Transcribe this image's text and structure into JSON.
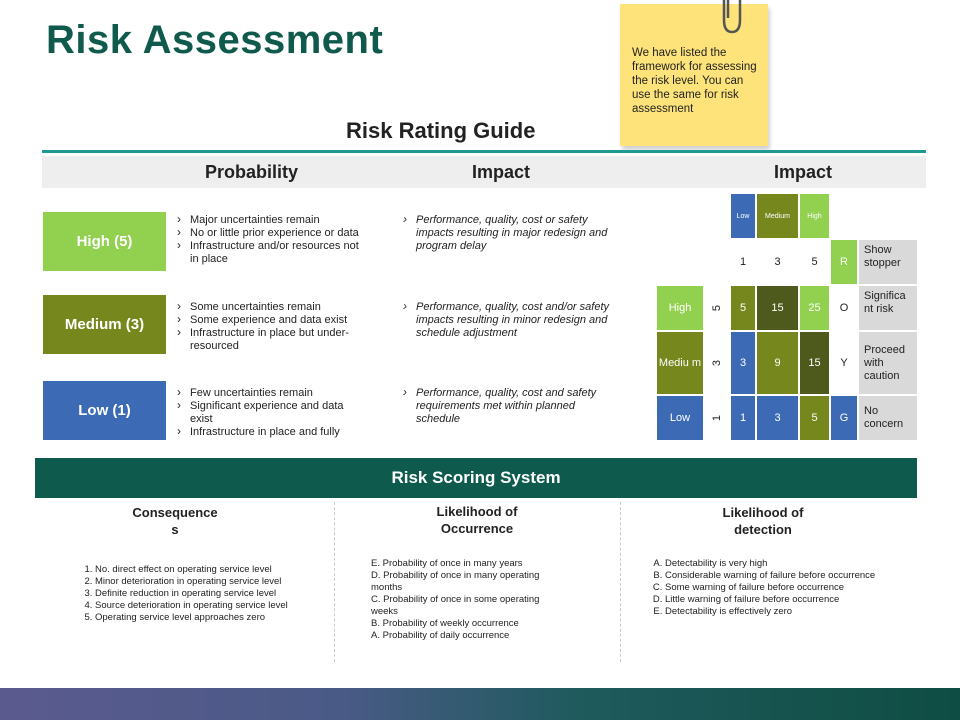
{
  "title": "Risk Assessment",
  "sticky_note": "We have listed the framework for assessing the risk level. You can use the same for risk assessment",
  "guide": {
    "title": "Risk Rating Guide",
    "headers": {
      "probability": "Probability",
      "impact": "Impact",
      "matrix": "Impact"
    },
    "levels": [
      {
        "label": "High (5)",
        "color": "#92d050",
        "probability": [
          "Major uncertainties remain",
          "No or little prior experience or data",
          "Infrastructure and/or resources not in place"
        ],
        "impact": "Performance, quality, cost or safety impacts resulting in major redesign and program delay"
      },
      {
        "label": "Medium (3)",
        "color": "#76881d",
        "probability": [
          "Some uncertainties remain",
          "Some experience and data exist",
          "Infrastructure in place but under-resourced"
        ],
        "impact": "Performance, quality, cost and/or safety impacts resulting in minor redesign and schedule adjustment"
      },
      {
        "label": "Low (1)",
        "color": "#3c6ab5",
        "probability": [
          "Few uncertainties remain",
          "Significant experience and data exist",
          "Infrastructure in place and fully"
        ],
        "impact": "Performance, quality, cost and safety requirements met within planned schedule"
      }
    ]
  },
  "matrix": {
    "col_headers": [
      "Low",
      "Medium",
      "High"
    ],
    "col_values": [
      "1",
      "3",
      "5"
    ],
    "corner_letter": "R",
    "corner_desc": "Show stopper",
    "rows": [
      {
        "label": "High",
        "value": "5",
        "cells": [
          "5",
          "15",
          "25"
        ],
        "letter": "O",
        "desc": "Significa nt risk"
      },
      {
        "label": "Mediu m",
        "value": "3",
        "cells": [
          "3",
          "9",
          "15"
        ],
        "letter": "Y",
        "desc": "Proceed with caution"
      },
      {
        "label": "Low",
        "value": "1",
        "cells": [
          "1",
          "3",
          "5"
        ],
        "letter": "G",
        "desc": "No concern"
      }
    ]
  },
  "scoring": {
    "title": "Risk Scoring System",
    "columns": [
      {
        "header": "Consequence s",
        "items": [
          "No. direct effect on operating service level",
          "Minor deterioration in operating service level",
          "Definite reduction in operating service level",
          "Source deterioration in operating service level",
          "Operating service level approaches zero"
        ]
      },
      {
        "header": "Likelihood of Occurrence",
        "items": [
          "E. Probability of once in many years",
          "D. Probability of once in many operating months",
          "C. Probability of once in some operating weeks",
          "B. Probability of weekly occurrence",
          "A. Probability of daily occurrence"
        ]
      },
      {
        "header": "Likelihood of detection",
        "items": [
          "Detectability is very high",
          "Considerable warning of failure before occurrence",
          "Some warning of failure before occurrence",
          "Little warning of failure before occurrence",
          "Detectability is effectively zero"
        ]
      }
    ]
  }
}
